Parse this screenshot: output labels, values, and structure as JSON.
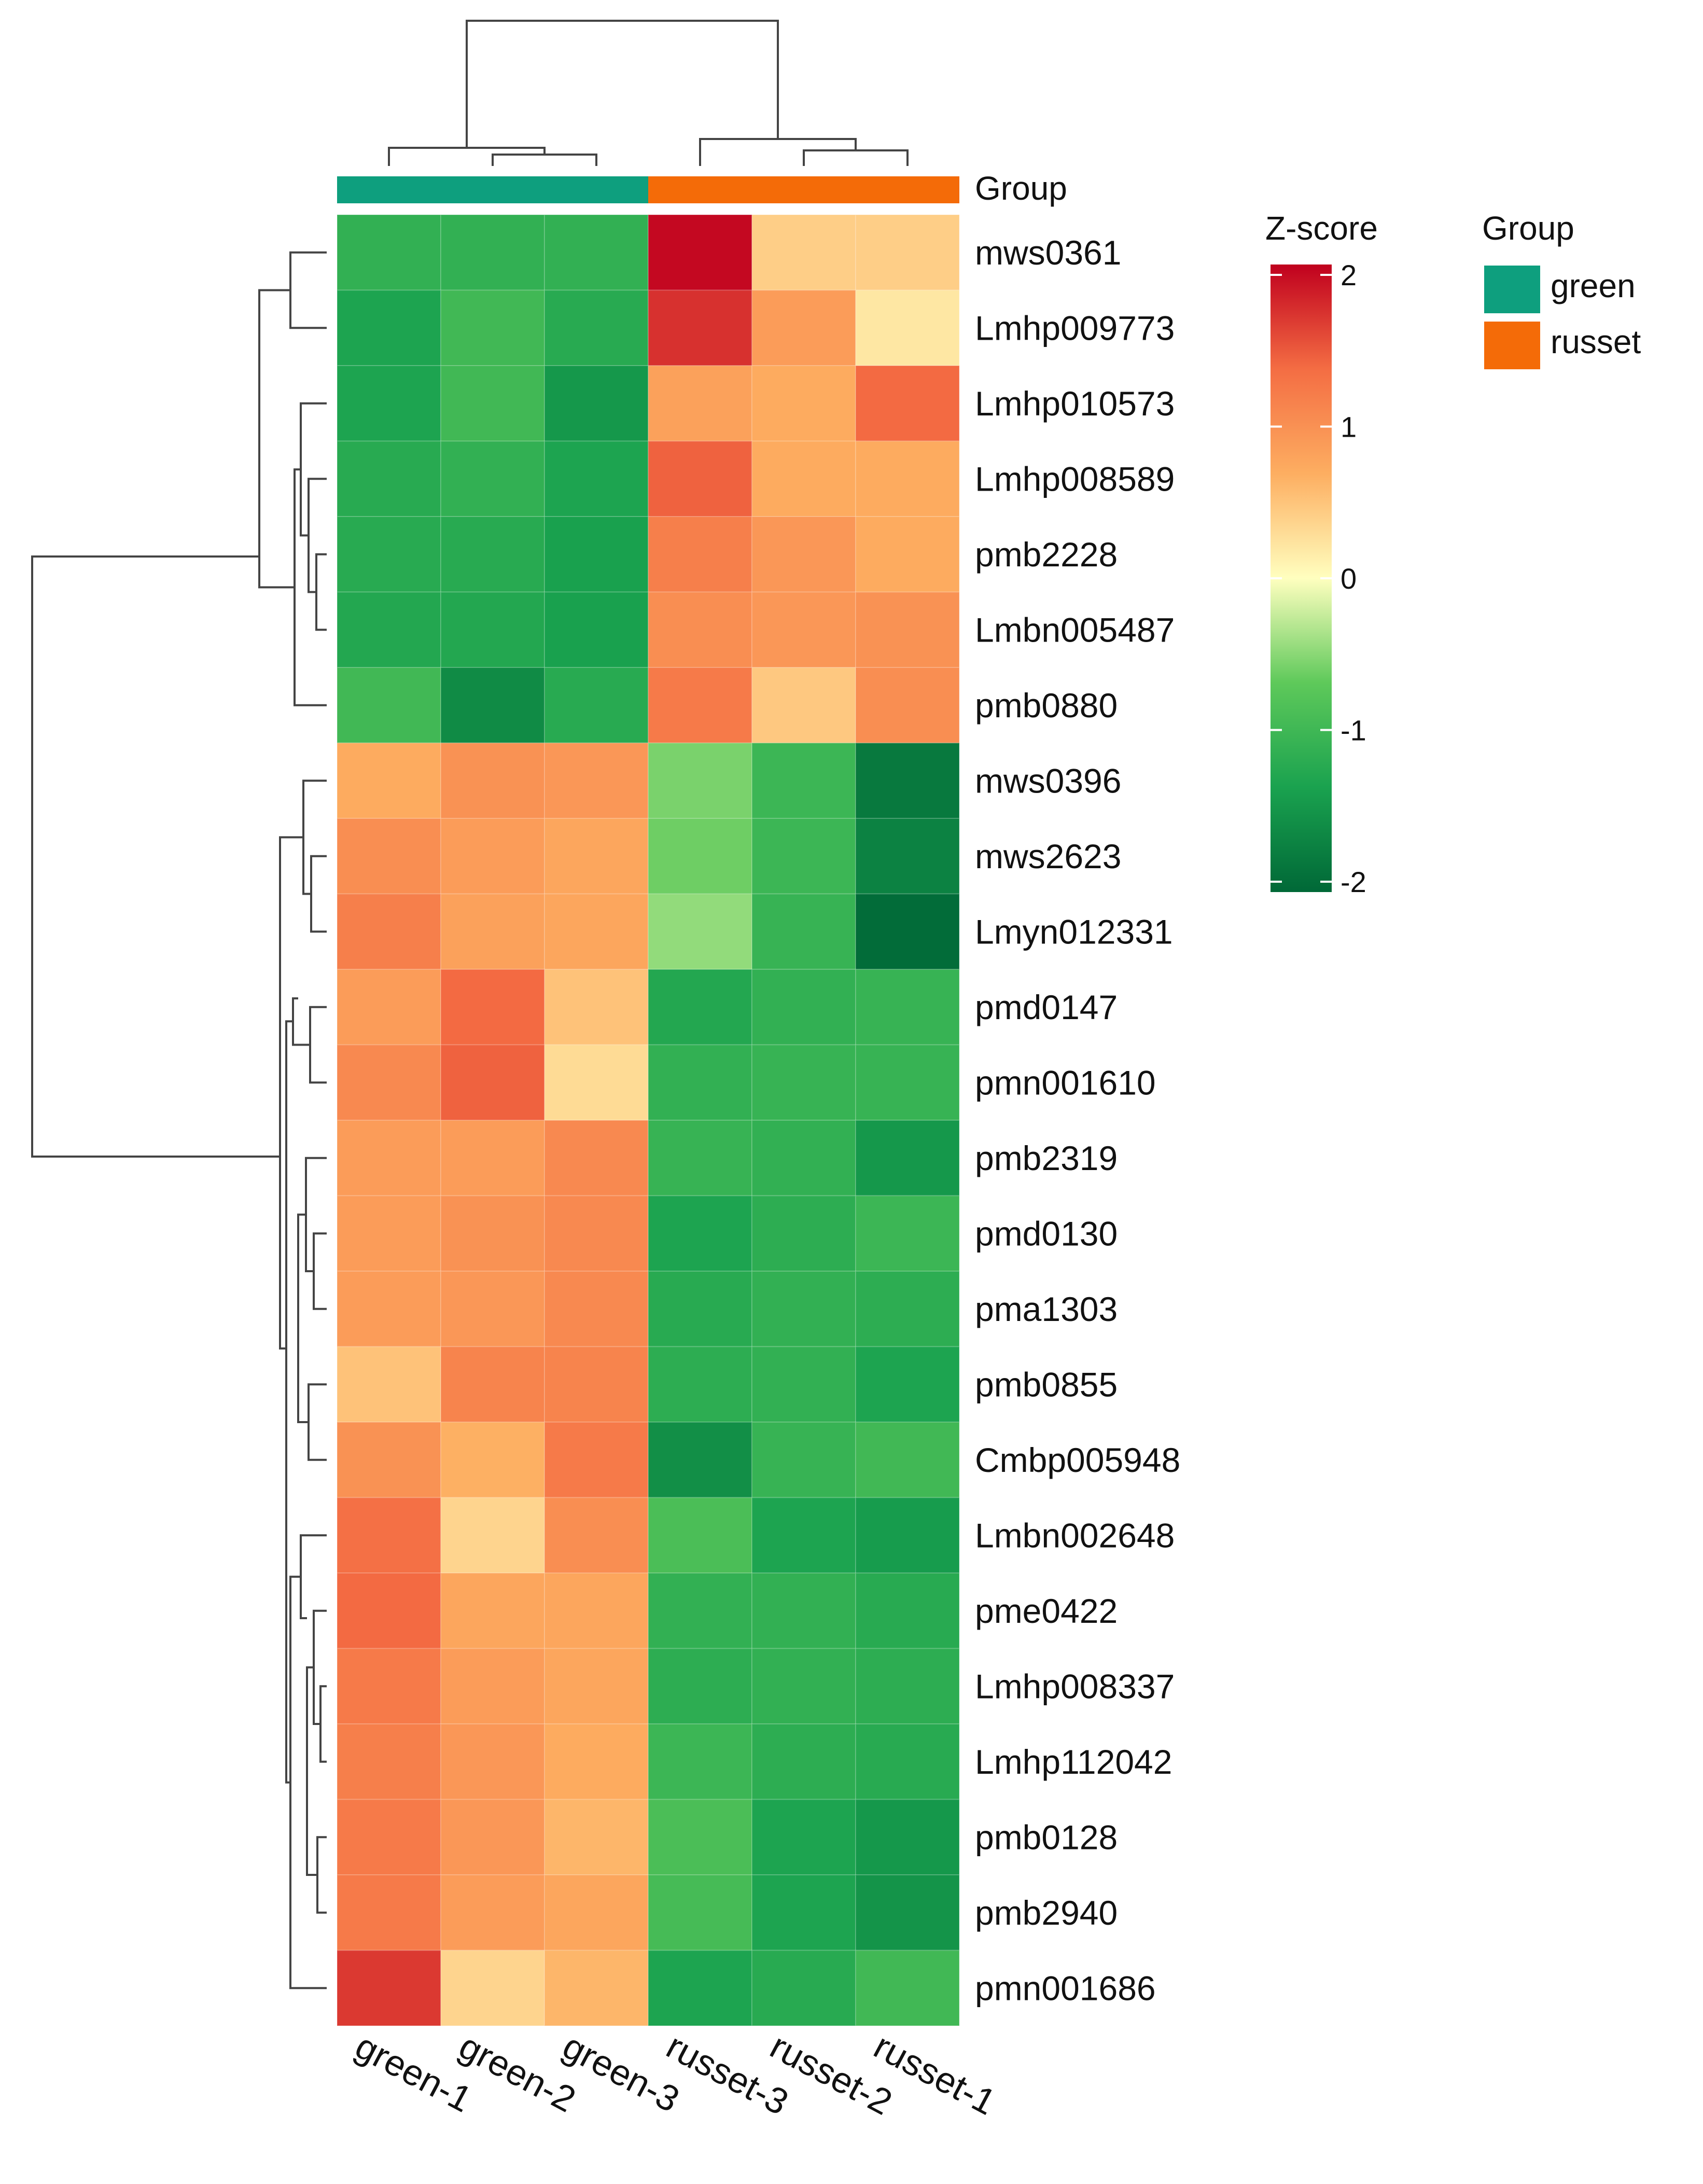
{
  "chart_data": {
    "type": "heatmap",
    "title": "",
    "columns": [
      "green-1",
      "green-2",
      "green-3",
      "russet-3",
      "russet-2",
      "russet-1"
    ],
    "column_groups": [
      "green",
      "green",
      "green",
      "russet",
      "russet",
      "russet"
    ],
    "rows": [
      "mws0361",
      "Lmhp009773",
      "Lmhp010573",
      "Lmhp008589",
      "pmb2228",
      "Lmbn005487",
      "pmb0880",
      "mws0396",
      "mws2623",
      "Lmyn012331",
      "pmd0147",
      "pmn001610",
      "pmb2319",
      "pmd0130",
      "pma1303",
      "pmb0855",
      "Cmbp005948",
      "Lmbn002648",
      "pme0422",
      "Lmhp008337",
      "Lmhp112042",
      "pmb0128",
      "pmb2940",
      "pmn001686"
    ],
    "values": [
      [
        -1.1,
        -1.1,
        -1.1,
        1.95,
        0.4,
        0.4
      ],
      [
        -1.3,
        -0.95,
        -1.2,
        1.7,
        0.85,
        0.2
      ],
      [
        -1.3,
        -0.95,
        -1.45,
        0.8,
        0.7,
        1.35
      ],
      [
        -1.2,
        -1.1,
        -1.3,
        1.4,
        0.7,
        0.7
      ],
      [
        -1.2,
        -1.2,
        -1.35,
        1.15,
        0.9,
        0.7
      ],
      [
        -1.25,
        -1.25,
        -1.35,
        1.0,
        0.9,
        0.95
      ],
      [
        -0.95,
        -1.6,
        -1.2,
        1.2,
        0.45,
        1.0
      ],
      [
        0.7,
        0.95,
        0.9,
        -0.55,
        -1.0,
        -1.8
      ],
      [
        1.0,
        0.85,
        0.75,
        -0.6,
        -1.0,
        -1.7
      ],
      [
        1.15,
        0.8,
        0.75,
        -0.45,
        -1.05,
        -1.95
      ],
      [
        0.85,
        1.35,
        0.5,
        -1.25,
        -1.1,
        -1.05
      ],
      [
        1.05,
        1.4,
        0.3,
        -1.1,
        -1.05,
        -1.05
      ],
      [
        0.85,
        0.85,
        1.05,
        -1.05,
        -1.1,
        -1.45
      ],
      [
        0.85,
        0.95,
        1.05,
        -1.3,
        -1.15,
        -1.0
      ],
      [
        0.85,
        0.9,
        1.05,
        -1.2,
        -1.1,
        -1.15
      ],
      [
        0.5,
        1.1,
        1.1,
        -1.15,
        -1.1,
        -1.3
      ],
      [
        0.95,
        0.65,
        1.2,
        -1.55,
        -1.05,
        -0.95
      ],
      [
        1.3,
        0.35,
        1.0,
        -0.85,
        -1.3,
        -1.4
      ],
      [
        1.35,
        0.75,
        0.75,
        -1.1,
        -1.1,
        -1.2
      ],
      [
        1.2,
        0.85,
        0.75,
        -1.15,
        -1.1,
        -1.15
      ],
      [
        1.15,
        0.9,
        0.7,
        -1.0,
        -1.15,
        -1.2
      ],
      [
        1.2,
        0.9,
        0.6,
        -0.85,
        -1.3,
        -1.45
      ],
      [
        1.2,
        0.85,
        0.75,
        -0.9,
        -1.3,
        -1.5
      ],
      [
        1.65,
        0.35,
        0.6,
        -1.3,
        -1.2,
        -0.95
      ]
    ],
    "zscore_range": [
      -2,
      2
    ],
    "colorbar_ticks": [
      2,
      1,
      0,
      -1,
      -2
    ]
  },
  "colors": {
    "green_group": "#0e9f7e",
    "russet_group": "#f46b08",
    "scale_stops": [
      "#006837",
      "#1aa24f",
      "#5ec95a",
      "#ffffbf",
      "#fdae61",
      "#f46d43",
      "#c0001e"
    ]
  },
  "legend": {
    "zscore_title": "Z-score",
    "group_title": "Group",
    "group_items": [
      {
        "label": "green",
        "color": "#0e9f7e"
      },
      {
        "label": "russet",
        "color": "#f46b08"
      }
    ]
  },
  "annotation": {
    "bar_label": "Group"
  }
}
